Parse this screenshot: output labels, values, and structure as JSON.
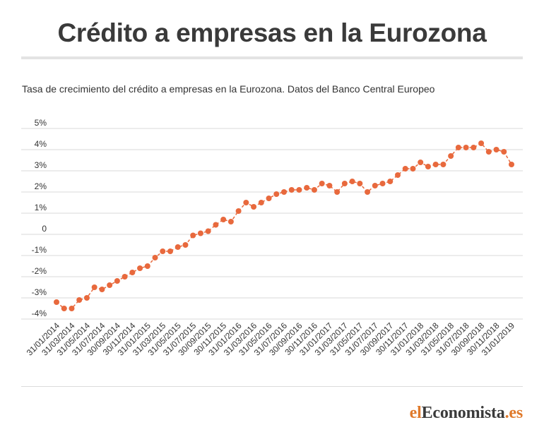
{
  "header": {
    "title": "Crédito a empresas en la Eurozona",
    "subtitle": "Tasa de crecimiento del crédito a empresas en la Eurozona. Datos del Banco Central Europeo"
  },
  "footer": {
    "logo_prefix": "el",
    "logo_main": "Economista",
    "logo_suffix": ".es"
  },
  "colors": {
    "series": "#e8693d",
    "grid": "#d9d9d9",
    "text": "#333333",
    "logo_accent": "#e07a2b"
  },
  "chart_data": {
    "type": "line",
    "title": "Crédito a empresas en la Eurozona",
    "subtitle": "Tasa de crecimiento del crédito a empresas en la Eurozona. Datos del Banco Central Europeo",
    "xlabel": "",
    "ylabel": "",
    "ylim": [
      -4,
      5
    ],
    "yticks": [
      "5%",
      "4%",
      "3%",
      "2%",
      "1%",
      "0",
      "-1%",
      "-2%",
      "-3%",
      "-4%"
    ],
    "ytick_values": [
      5,
      4,
      3,
      2,
      1,
      0,
      -1,
      -2,
      -3,
      -4
    ],
    "grid": true,
    "legend": "none",
    "line_style": "dashed with dot markers",
    "xtick_labels": [
      "31/01/2014",
      "31/03/2014",
      "31/05/2014",
      "31/07/2014",
      "30/09/2014",
      "30/11/2014",
      "31/01/2015",
      "31/03/2015",
      "31/05/2015",
      "31/07/2015",
      "30/09/2015",
      "30/11/2015",
      "31/01/2016",
      "31/03/2016",
      "31/05/2016",
      "31/07/2016",
      "30/09/2016",
      "30/11/2016",
      "31/01/2017",
      "31/03/2017",
      "31/05/2017",
      "31/07/2017",
      "30/09/2017",
      "30/11/2017",
      "31/01/2018",
      "31/03/2018",
      "31/05/2018",
      "31/07/2018",
      "30/09/2018",
      "30/11/2018",
      "31/01/2019"
    ],
    "xtick_every": 2,
    "series": [
      {
        "values": [
          -3.2,
          -3.5,
          -3.5,
          -3.1,
          -3.0,
          -2.5,
          -2.6,
          -2.4,
          -2.2,
          -2.0,
          -1.8,
          -1.6,
          -1.5,
          -1.1,
          -0.8,
          -0.8,
          -0.6,
          -0.5,
          -0.05,
          0.05,
          0.15,
          0.45,
          0.7,
          0.6,
          1.1,
          1.5,
          1.3,
          1.5,
          1.7,
          1.9,
          2.0,
          2.1,
          2.1,
          2.2,
          2.1,
          2.4,
          2.3,
          2.0,
          2.4,
          2.5,
          2.4,
          2.0,
          2.3,
          2.4,
          2.5,
          2.8,
          3.1,
          3.1,
          3.4,
          3.2,
          3.3,
          3.3,
          3.7,
          4.1,
          4.1,
          4.1,
          4.3,
          3.9,
          4.0,
          3.9,
          3.3
        ]
      }
    ]
  }
}
